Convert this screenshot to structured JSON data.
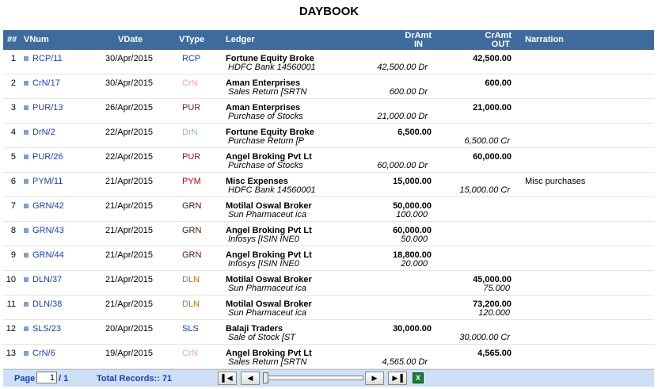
{
  "title": "DAYBOOK",
  "columns": {
    "no": "##",
    "vnum": "VNum",
    "vdate": "VDate",
    "vtype": "VType",
    "ledger": "Ledger",
    "dr_top": "DrAmt",
    "dr_bottom": "IN",
    "cr_top": "CrAmt",
    "cr_bottom": "OUT",
    "narration": "Narration"
  },
  "type_colors": {
    "RCP": "#1a3fb8",
    "CrN": "#f2a6a6",
    "PUR": "#7a1f1f",
    "DrN": "#8ab4e6",
    "PYM": "#c00000",
    "GRN": "#4a1a0a",
    "DLN": "#c07020",
    "SLS": "#1a3fb8"
  },
  "rows": [
    {
      "no": "1",
      "vnum": "RCP/11",
      "vdate": "30/Apr/2015",
      "vtype": "RCP",
      "ledger": "Fortune Equity Broke",
      "sub": "HDFC Bank 14560001",
      "sub_amt": "42,500.00 Dr",
      "dr": "",
      "cr": "42,500.00",
      "cr_amt": "",
      "narration": ""
    },
    {
      "no": "2",
      "vnum": "CrN/17",
      "vdate": "30/Apr/2015",
      "vtype": "CrN",
      "ledger": "Aman Enterprises",
      "sub": "Sales Return [SRTN",
      "sub_amt": "600.00 Dr",
      "dr": "",
      "cr": "600.00",
      "cr_amt": "",
      "narration": ""
    },
    {
      "no": "3",
      "vnum": "PUR/13",
      "vdate": "26/Apr/2015",
      "vtype": "PUR",
      "ledger": "Aman Enterprises",
      "sub": "Purchase of Stocks",
      "sub_amt": "21,000.00 Dr",
      "dr": "",
      "cr": "21,000.00",
      "cr_amt": "",
      "narration": ""
    },
    {
      "no": "4",
      "vnum": "DrN/2",
      "vdate": "22/Apr/2015",
      "vtype": "DrN",
      "ledger": "Fortune Equity Broke",
      "sub": "Purchase Return [P",
      "sub_amt": "",
      "dr": "6,500.00",
      "cr": "",
      "cr_amt": "6,500.00 Cr",
      "narration": ""
    },
    {
      "no": "5",
      "vnum": "PUR/26",
      "vdate": "22/Apr/2015",
      "vtype": "PUR",
      "ledger": "Angel Broking Pvt Lt",
      "sub": "Purchase of Stocks",
      "sub_amt": "60,000.00 Dr",
      "dr": "",
      "cr": "60,000.00",
      "cr_amt": "",
      "narration": ""
    },
    {
      "no": "6",
      "vnum": "PYM/11",
      "vdate": "21/Apr/2015",
      "vtype": "PYM",
      "ledger": "Misc Expenses",
      "sub": "HDFC Bank 14560001",
      "sub_amt": "",
      "dr": "15,000.00",
      "cr": "",
      "cr_amt": "15,000.00 Cr",
      "narration": "Misc purchases"
    },
    {
      "no": "7",
      "vnum": "GRN/42",
      "vdate": "21/Apr/2015",
      "vtype": "GRN",
      "ledger": "Motilal Oswal Broker",
      "sub": "Sun Pharmaceut ica",
      "sub_amt": "100.000",
      "dr": "50,000.00",
      "cr": "",
      "cr_amt": "",
      "narration": ""
    },
    {
      "no": "8",
      "vnum": "GRN/43",
      "vdate": "21/Apr/2015",
      "vtype": "GRN",
      "ledger": "Angel Broking Pvt Lt",
      "sub": "Infosys [ISIN INE0",
      "sub_amt": "50.000",
      "dr": "60,000.00",
      "cr": "",
      "cr_amt": "",
      "narration": ""
    },
    {
      "no": "9",
      "vnum": "GRN/44",
      "vdate": "21/Apr/2015",
      "vtype": "GRN",
      "ledger": "Angel Broking Pvt Lt",
      "sub": "Infosys [ISIN INE0",
      "sub_amt": "20.000",
      "dr": "18,800.00",
      "cr": "",
      "cr_amt": "",
      "narration": ""
    },
    {
      "no": "10",
      "vnum": "DLN/37",
      "vdate": "21/Apr/2015",
      "vtype": "DLN",
      "ledger": "Motilal Oswal Broker",
      "sub": "Sun Pharmaceut ica",
      "sub_amt": "",
      "dr": "",
      "cr": "45,000.00",
      "cr_amt": "75.000",
      "narration": ""
    },
    {
      "no": "11",
      "vnum": "DLN/38",
      "vdate": "21/Apr/2015",
      "vtype": "DLN",
      "ledger": "Motilal Oswal Broker",
      "sub": "Sun Pharmaceut ica",
      "sub_amt": "",
      "dr": "",
      "cr": "73,200.00",
      "cr_amt": "120.000",
      "narration": ""
    },
    {
      "no": "12",
      "vnum": "SLS/23",
      "vdate": "20/Apr/2015",
      "vtype": "SLS",
      "ledger": "Balaji Traders",
      "sub": "Sale of Stock [ST",
      "sub_amt": "",
      "dr": "30,000.00",
      "cr": "",
      "cr_amt": "30,000.00 Cr",
      "narration": ""
    },
    {
      "no": "13",
      "vnum": "CrN/6",
      "vdate": "19/Apr/2015",
      "vtype": "CrN",
      "ledger": "Angel Broking Pvt Lt",
      "sub": "Sales Return [SRTN",
      "sub_amt": "4,565.00 Dr",
      "dr": "",
      "cr": "4,565.00",
      "cr_amt": "",
      "narration": ""
    }
  ],
  "pager": {
    "page_label": "Page",
    "page_value": "1",
    "page_total": "/ 1",
    "records_label": "Total Records:: 71",
    "first_icon": "first-page-icon",
    "prev_icon": "prev-page-icon",
    "next_icon": "next-page-icon",
    "last_icon": "last-page-icon",
    "export_icon": "excel-export-icon",
    "slider_position": 0
  }
}
